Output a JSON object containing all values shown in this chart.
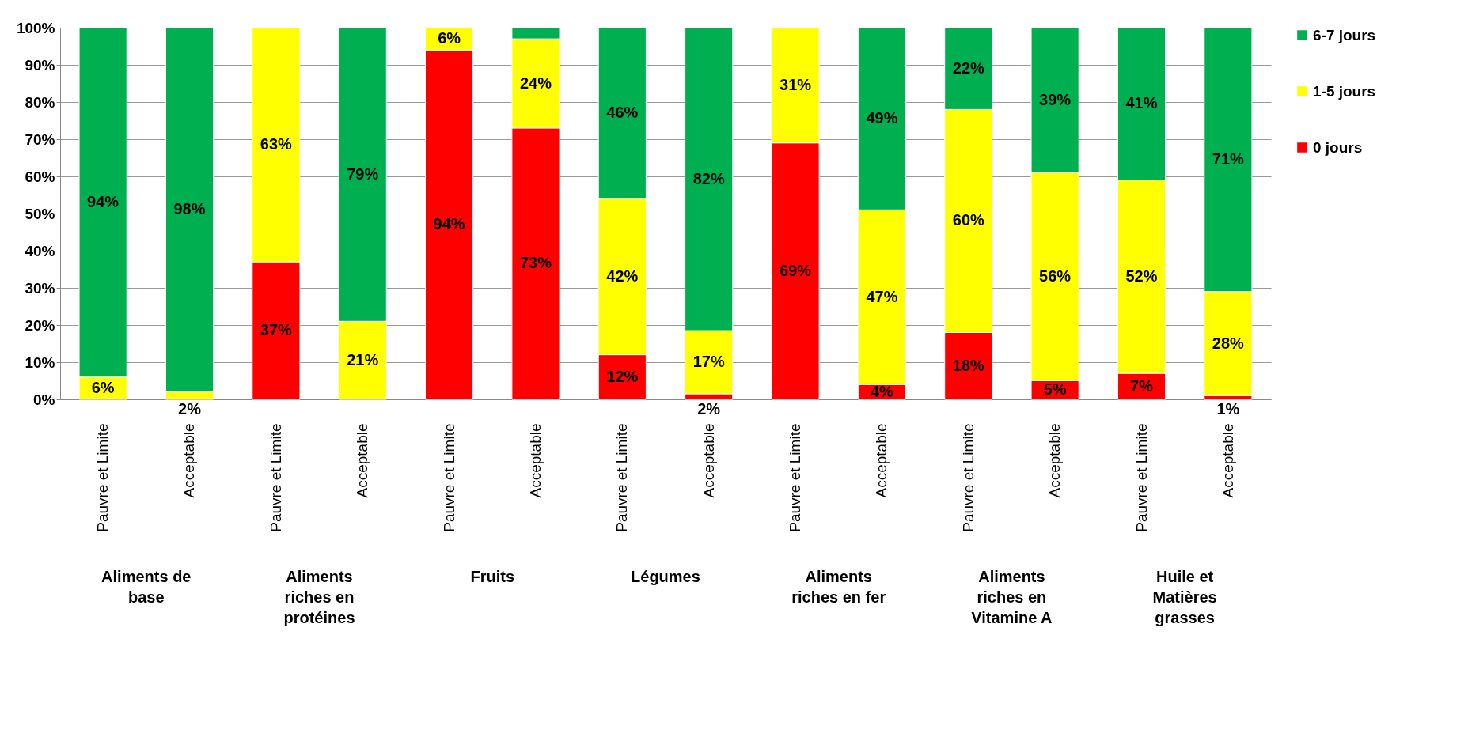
{
  "chart_data": {
    "type": "bar",
    "stacked": true,
    "categories": [
      "Pauvre et Limite",
      "Acceptable",
      "Pauvre et Limite",
      "Acceptable",
      "Pauvre et Limite",
      "Acceptable",
      "Pauvre et Limite",
      "Acceptable",
      "Pauvre et Limite",
      "Acceptable",
      "Pauvre et Limite",
      "Acceptable",
      "Pauvre et Limite",
      "Acceptable"
    ],
    "series": [
      {
        "name": "0 jours",
        "color": "#ff0000",
        "values": [
          null,
          null,
          37,
          null,
          94,
          73,
          12,
          1.5,
          69,
          4,
          18,
          5,
          7,
          1
        ],
        "value_labels": [
          null,
          null,
          "37%",
          null,
          "94%",
          "73%",
          "12%",
          "2%",
          "69%",
          "4%",
          "18%",
          "5%",
          "7%",
          "1%"
        ]
      },
      {
        "name": "1-5 jours",
        "color": "#ffff00",
        "values": [
          6,
          2,
          63,
          21,
          6,
          24,
          42,
          17,
          31,
          47,
          60,
          56,
          52,
          28
        ],
        "value_labels": [
          "6%",
          "2%",
          "63%",
          "21%",
          "6%",
          "24%",
          "42%",
          "17%",
          "31%",
          "47%",
          "60%",
          "56%",
          "52%",
          "28%"
        ]
      },
      {
        "name": "6-7 jours",
        "color": "#00b050",
        "values": [
          94,
          98,
          null,
          79,
          null,
          3,
          46,
          81.5,
          null,
          49,
          22,
          39,
          41,
          71
        ],
        "value_labels": [
          "94%",
          "98%",
          null,
          "79%",
          null,
          null,
          "46%",
          "82%",
          null,
          "49%",
          "22%",
          "39%",
          "41%",
          "71%"
        ]
      }
    ],
    "ylim": [
      0,
      100
    ],
    "yticks": [
      {
        "value": 0,
        "label": "0%"
      },
      {
        "value": 10,
        "label": "10%"
      },
      {
        "value": 20,
        "label": "20%"
      },
      {
        "value": 30,
        "label": "30%"
      },
      {
        "value": 40,
        "label": "40%"
      },
      {
        "value": 50,
        "label": "50%"
      },
      {
        "value": 60,
        "label": "60%"
      },
      {
        "value": 70,
        "label": "70%"
      },
      {
        "value": 80,
        "label": "80%"
      },
      {
        "value": 90,
        "label": "90%"
      },
      {
        "value": 100,
        "label": "100%"
      }
    ],
    "grid": "y",
    "legend": "right",
    "annotations": [
      "Aliments de base",
      "Aliments riches en protéines",
      "Fruits",
      "Légumes",
      "Aliments riches en fer",
      "Aliments riches en Vitamine A",
      "Huile et Matières grasses"
    ]
  }
}
